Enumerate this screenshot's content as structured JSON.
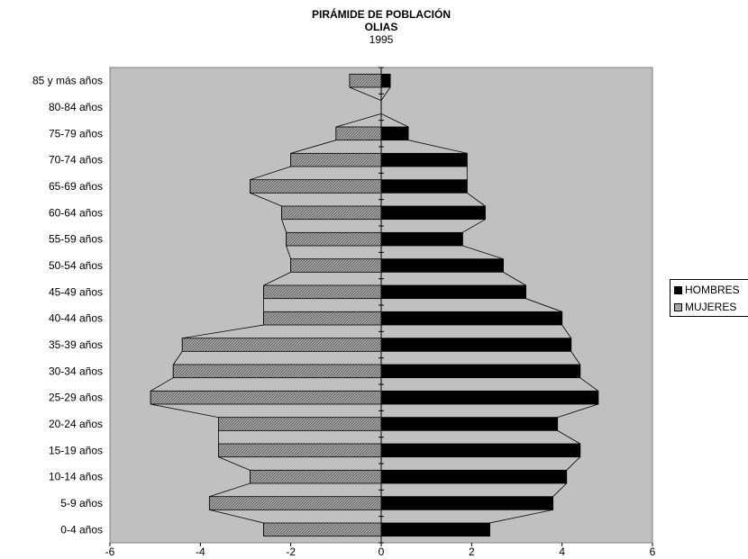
{
  "chart_data": {
    "type": "bar",
    "title": "PIRÁMIDE DE POBLACIÓN",
    "subtitle": "OLIAS",
    "year": "1995",
    "categories": [
      "0-4 años",
      "5-9 años",
      "10-14 años",
      "15-19 años",
      "20-24 años",
      "25-29 años",
      "30-34 años",
      "35-39 años",
      "40-44 años",
      "45-49 años",
      "50-54 años",
      "55-59 años",
      "60-64 años",
      "65-69 años",
      "70-74 años",
      "75-79 años",
      "80-84 años",
      "85 y más años"
    ],
    "series": [
      {
        "name": "HOMBRES",
        "color": "#000000",
        "values": [
          2.4,
          3.8,
          4.1,
          4.4,
          3.9,
          4.8,
          4.4,
          4.2,
          4.0,
          3.2,
          2.7,
          1.8,
          2.3,
          1.9,
          1.9,
          0.6,
          0.0,
          0.2
        ]
      },
      {
        "name": "MUJERES",
        "color": "#a6a6a6",
        "pattern": "hatched",
        "values": [
          -2.6,
          -3.8,
          -2.9,
          -3.6,
          -3.6,
          -5.1,
          -4.6,
          -4.4,
          -2.6,
          -2.6,
          -2.0,
          -2.1,
          -2.2,
          -2.9,
          -2.0,
          -1.0,
          0.0,
          -0.7
        ]
      }
    ],
    "xlim": [
      -6,
      6
    ],
    "xticks": [
      "-6",
      "-4",
      "-2",
      "0",
      "2",
      "4",
      "6"
    ],
    "xtick_values": [
      -6,
      -4,
      -2,
      0,
      2,
      4,
      6
    ],
    "orientation": "horizontal",
    "plot_background": "#c0c0c0",
    "legend_position": "right"
  }
}
